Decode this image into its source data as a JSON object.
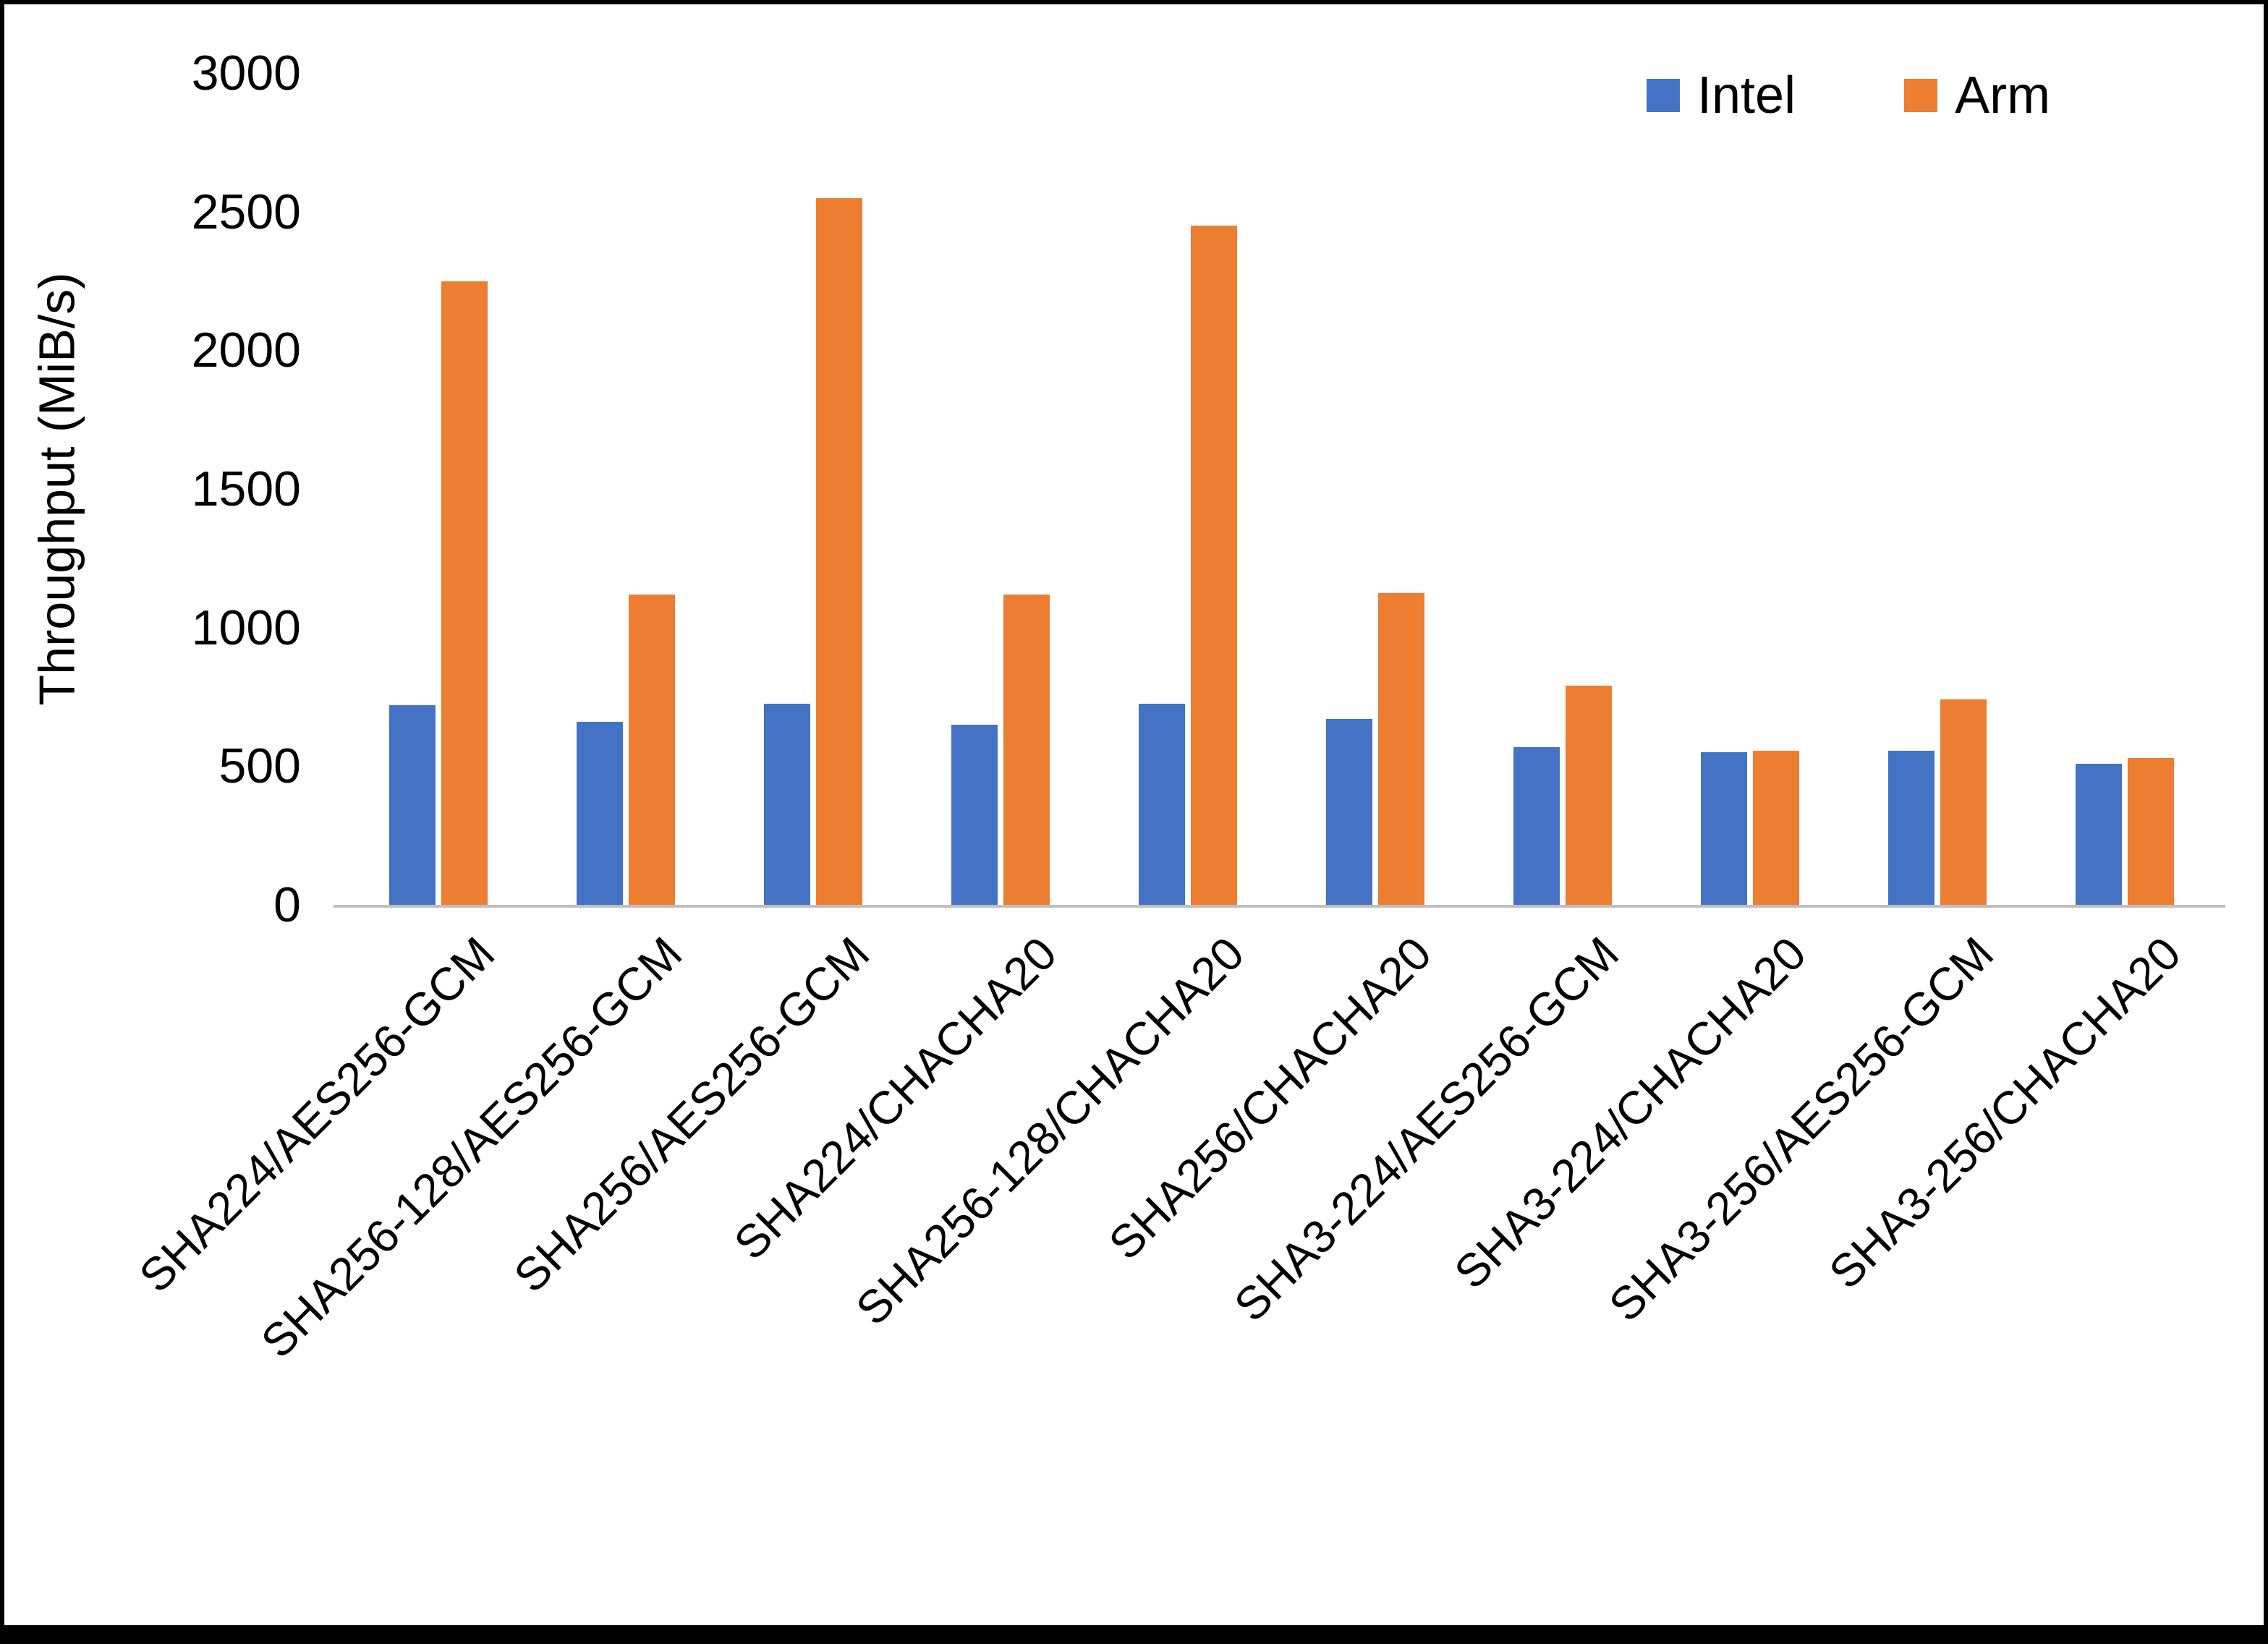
{
  "chart_data": {
    "type": "bar",
    "title": "",
    "xlabel": "",
    "ylabel": "Throughput (MiB/s)",
    "ylim": [
      0,
      3000
    ],
    "yticks": [
      0,
      500,
      1000,
      1500,
      2000,
      2500,
      3000
    ],
    "grid": false,
    "legend_position": "top-right",
    "categories": [
      "SHA224/AES256-GCM",
      "SHA256-128/AES256-GCM",
      "SHA256/AES256-GCM",
      "SHA224/CHACHA20",
      "SHA256-128/CHACHA20",
      "SHA256/CHACHA20",
      "SHA3-224/AES256-GCM",
      "SHA3-224/CHACHA20",
      "SHA3-256/AES256-GCM",
      "SHA3-256/CHACHA20"
    ],
    "series": [
      {
        "name": "Intel",
        "color": "#4472C4",
        "values": [
          720,
          660,
          725,
          650,
          725,
          670,
          570,
          550,
          555,
          510
        ]
      },
      {
        "name": "Arm",
        "color": "#ED7D31",
        "values": [
          2250,
          1120,
          2550,
          1120,
          2450,
          1125,
          790,
          555,
          740,
          530
        ]
      }
    ]
  }
}
